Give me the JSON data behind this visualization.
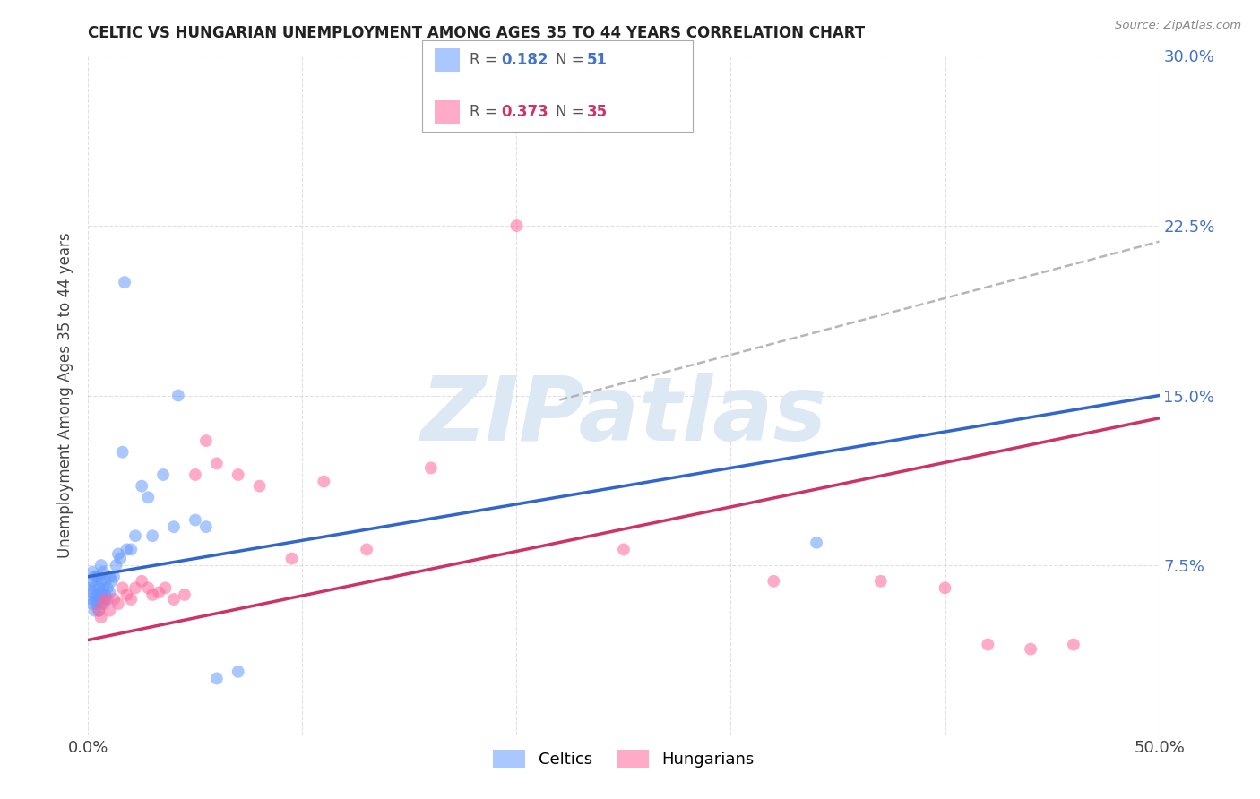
{
  "title": "CELTIC VS HUNGARIAN UNEMPLOYMENT AMONG AGES 35 TO 44 YEARS CORRELATION CHART",
  "source": "Source: ZipAtlas.com",
  "ylabel": "Unemployment Among Ages 35 to 44 years",
  "xlim": [
    0.0,
    0.5
  ],
  "ylim": [
    0.0,
    0.3
  ],
  "xticks": [
    0.0,
    0.1,
    0.2,
    0.3,
    0.4,
    0.5
  ],
  "yticks": [
    0.0,
    0.075,
    0.15,
    0.225,
    0.3
  ],
  "background_color": "#ffffff",
  "grid_color": "#cccccc",
  "celtics_color": "#6699ff",
  "hungarians_color": "#ff6699",
  "celtics_line_color": "#3366cc",
  "hungarians_line_color": "#cc3366",
  "dashed_line_color": "#aaaaaa",
  "watermark": "ZIPatlas",
  "watermark_color": "#dde8f5",
  "celtics_x": [
    0.001,
    0.001,
    0.002,
    0.002,
    0.002,
    0.002,
    0.003,
    0.003,
    0.003,
    0.003,
    0.004,
    0.004,
    0.004,
    0.005,
    0.005,
    0.005,
    0.005,
    0.006,
    0.006,
    0.006,
    0.006,
    0.007,
    0.007,
    0.007,
    0.008,
    0.008,
    0.009,
    0.009,
    0.01,
    0.01,
    0.011,
    0.012,
    0.013,
    0.014,
    0.015,
    0.016,
    0.017,
    0.018,
    0.02,
    0.022,
    0.025,
    0.028,
    0.03,
    0.035,
    0.04,
    0.042,
    0.05,
    0.055,
    0.06,
    0.07,
    0.34
  ],
  "celtics_y": [
    0.06,
    0.065,
    0.058,
    0.063,
    0.068,
    0.072,
    0.055,
    0.06,
    0.065,
    0.07,
    0.058,
    0.062,
    0.07,
    0.055,
    0.06,
    0.065,
    0.07,
    0.058,
    0.063,
    0.068,
    0.075,
    0.06,
    0.065,
    0.072,
    0.062,
    0.068,
    0.06,
    0.065,
    0.063,
    0.07,
    0.068,
    0.07,
    0.075,
    0.08,
    0.078,
    0.125,
    0.2,
    0.082,
    0.082,
    0.088,
    0.11,
    0.105,
    0.088,
    0.115,
    0.092,
    0.15,
    0.095,
    0.092,
    0.025,
    0.028,
    0.085
  ],
  "hungarians_x": [
    0.005,
    0.006,
    0.007,
    0.008,
    0.01,
    0.012,
    0.014,
    0.016,
    0.018,
    0.02,
    0.022,
    0.025,
    0.028,
    0.03,
    0.033,
    0.036,
    0.04,
    0.045,
    0.05,
    0.055,
    0.06,
    0.07,
    0.08,
    0.095,
    0.11,
    0.13,
    0.16,
    0.2,
    0.25,
    0.32,
    0.37,
    0.4,
    0.42,
    0.44,
    0.46
  ],
  "hungarians_y": [
    0.055,
    0.052,
    0.058,
    0.06,
    0.055,
    0.06,
    0.058,
    0.065,
    0.062,
    0.06,
    0.065,
    0.068,
    0.065,
    0.062,
    0.063,
    0.065,
    0.06,
    0.062,
    0.115,
    0.13,
    0.12,
    0.115,
    0.11,
    0.078,
    0.112,
    0.082,
    0.118,
    0.225,
    0.082,
    0.068,
    0.068,
    0.065,
    0.04,
    0.038,
    0.04
  ],
  "celtics_line": {
    "x0": 0.0,
    "y0": 0.07,
    "x1": 0.5,
    "y1": 0.15
  },
  "hungarians_line": {
    "x0": 0.0,
    "y0": 0.042,
    "x1": 0.5,
    "y1": 0.14
  },
  "dashed_line": {
    "x0": 0.22,
    "y0": 0.148,
    "x1": 0.5,
    "y1": 0.218
  }
}
